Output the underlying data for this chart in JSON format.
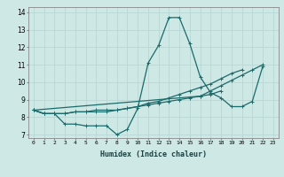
{
  "xlabel": "Humidex (Indice chaleur)",
  "ylabel": "",
  "bg_color": "#cde8e5",
  "line_color": "#1a6b6b",
  "grid_color": "#b8d8d5",
  "xlim": [
    -0.5,
    23.5
  ],
  "ylim": [
    6.8,
    14.3
  ],
  "xticks": [
    0,
    1,
    2,
    3,
    4,
    5,
    6,
    7,
    8,
    9,
    10,
    11,
    12,
    13,
    14,
    15,
    16,
    17,
    18,
    19,
    20,
    21,
    22,
    23
  ],
  "yticks": [
    7,
    8,
    9,
    10,
    11,
    12,
    13,
    14
  ],
  "lines": [
    {
      "x": [
        0,
        1,
        2,
        3,
        4,
        5,
        6,
        7,
        8,
        9,
        10,
        11,
        12,
        13,
        14,
        15,
        16,
        17,
        18,
        19,
        20,
        21,
        22
      ],
      "y": [
        8.4,
        8.2,
        8.2,
        7.6,
        7.6,
        7.5,
        7.5,
        7.5,
        7.0,
        7.3,
        8.5,
        11.1,
        12.1,
        13.7,
        13.7,
        12.2,
        10.3,
        9.4,
        9.1,
        8.6,
        8.6,
        8.9,
        10.9
      ]
    },
    {
      "x": [
        0,
        1,
        2,
        3,
        4,
        5,
        6,
        7,
        8,
        9,
        10,
        11,
        12,
        13,
        14,
        15,
        16,
        17,
        18
      ],
      "y": [
        8.4,
        8.2,
        8.2,
        8.2,
        8.3,
        8.3,
        8.3,
        8.3,
        8.4,
        8.5,
        8.6,
        8.7,
        8.8,
        8.9,
        9.0,
        9.1,
        9.2,
        9.3,
        9.5
      ]
    },
    {
      "x": [
        0,
        1,
        2,
        3,
        4,
        5,
        6,
        7,
        8,
        9,
        10,
        11,
        12,
        13,
        14,
        15,
        16,
        17,
        18,
        19,
        20
      ],
      "y": [
        8.4,
        8.2,
        8.2,
        8.2,
        8.3,
        8.3,
        8.4,
        8.4,
        8.4,
        8.5,
        8.6,
        8.8,
        8.9,
        9.1,
        9.3,
        9.5,
        9.7,
        9.9,
        10.2,
        10.5,
        10.7
      ]
    },
    {
      "x": [
        0,
        16,
        17,
        18,
        19,
        20,
        21,
        22
      ],
      "y": [
        8.4,
        9.2,
        9.5,
        9.8,
        10.1,
        10.4,
        10.7,
        11.0
      ]
    }
  ]
}
